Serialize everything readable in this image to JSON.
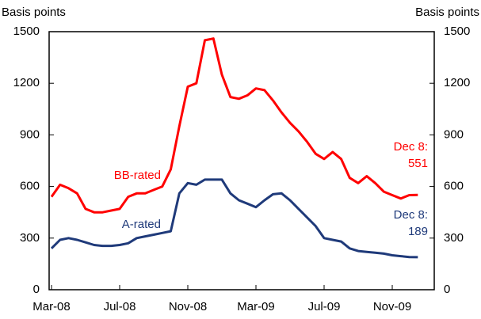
{
  "chart_data": {
    "type": "line",
    "ylabel": "Basis points",
    "y2label": "Basis points",
    "categories": [
      "Mar-08",
      null,
      null,
      null,
      null,
      null,
      null,
      null,
      "Jul-08",
      null,
      null,
      null,
      null,
      null,
      null,
      null,
      "Nov-08",
      null,
      null,
      null,
      null,
      null,
      null,
      null,
      "Mar-09",
      null,
      null,
      null,
      null,
      null,
      null,
      null,
      "Jul-09",
      null,
      null,
      null,
      null,
      null,
      null,
      null,
      "Nov-09",
      null,
      null,
      null
    ],
    "series": [
      {
        "name": "BB-rated",
        "color": "#ff0000",
        "values": [
          540,
          610,
          590,
          560,
          470,
          450,
          450,
          460,
          470,
          540,
          560,
          560,
          580,
          600,
          700,
          950,
          1180,
          1200,
          1450,
          1460,
          1250,
          1120,
          1110,
          1130,
          1170,
          1160,
          1100,
          1030,
          970,
          920,
          860,
          790,
          760,
          800,
          760,
          650,
          620,
          660,
          620,
          570,
          550,
          530,
          550,
          551
        ]
      },
      {
        "name": "A-rated",
        "color": "#1f3a7a",
        "values": [
          240,
          290,
          300,
          290,
          275,
          260,
          255,
          255,
          260,
          270,
          300,
          310,
          320,
          330,
          340,
          560,
          620,
          610,
          640,
          640,
          640,
          560,
          520,
          500,
          480,
          520,
          555,
          560,
          520,
          470,
          420,
          370,
          300,
          290,
          280,
          240,
          225,
          220,
          215,
          210,
          200,
          195,
          190,
          189
        ]
      }
    ],
    "annotations": [
      {
        "text": "Dec 8:",
        "color": "#ff0000"
      },
      {
        "text": "551",
        "color": "#ff0000"
      },
      {
        "text": "Dec 8:",
        "color": "#1f3a7a"
      },
      {
        "text": "189",
        "color": "#1f3a7a"
      }
    ],
    "ylim": [
      0,
      1500
    ],
    "yticks": [
      0,
      300,
      600,
      900,
      1200,
      1500
    ],
    "y2lim": [
      0,
      1500
    ],
    "y2ticks": [
      0,
      300,
      600,
      900,
      1200,
      1500
    ],
    "grid": false
  }
}
